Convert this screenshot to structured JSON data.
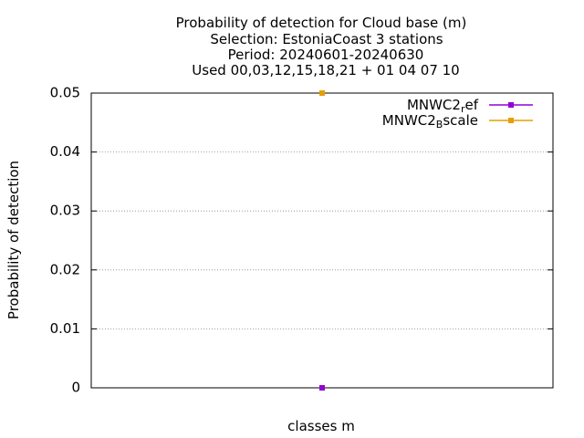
{
  "chart_data": {
    "type": "line",
    "title_lines": [
      "Probability of detection  for Cloud base (m)",
      "Selection: EstoniaCoast      3 stations",
      "Period: 20240601-20240630",
      "Used 00,03,12,15,18,21 + 01 04 07 10"
    ],
    "xlabel": "classes m",
    "ylabel": "Probability of detection",
    "ylim": [
      0,
      0.05
    ],
    "yticks": [
      "0",
      "0.01",
      "0.02",
      "0.03",
      "0.04",
      "0.05"
    ],
    "grid": true,
    "legend_position": "top-right",
    "series": [
      {
        "name_main": "MNWC2",
        "name_sub": "r",
        "name_rest": "ef",
        "color": "#9400d3",
        "points": [
          [
            0.5,
            0.0
          ]
        ]
      },
      {
        "name_main": "MNWC2",
        "name_sub": "B",
        "name_rest": "scale",
        "color": "#e69f00",
        "points": [
          [
            0.5,
            0.05
          ]
        ]
      }
    ]
  }
}
